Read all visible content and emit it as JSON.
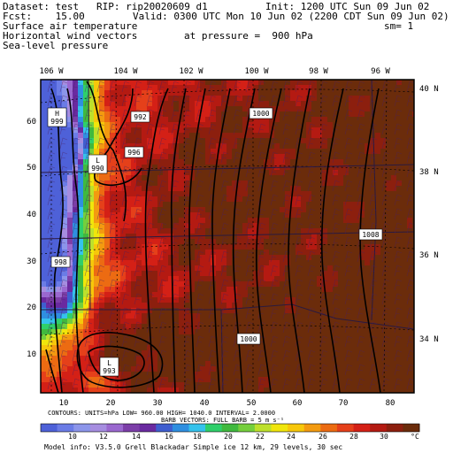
{
  "header": {
    "dataset_line": "Dataset: test   RIP: rip20020609 d1",
    "init_line": "Init: 1200 UTC Sun 09 Jun 02",
    "fcst_line": "Fcst:    15.00",
    "valid_line": "Valid: 0300 UTC Mon 10 Jun 02 (2200 CDT Sun 09 Jun 02)",
    "field1": "Surface air temperature",
    "sm_label": "sm= 1",
    "field2": "Horizontal wind vectors",
    "pressure_label": "at pressure =  900 hPa",
    "field3": "Sea-level pressure"
  },
  "map": {
    "lon_labels": [
      "106 W",
      "104 W",
      "102 W",
      "100 W",
      "98 W",
      "96 W"
    ],
    "lat_labels": [
      "40 N",
      "38 N",
      "36 N",
      "34 N"
    ],
    "x_ticks": [
      "10",
      "20",
      "30",
      "40",
      "50",
      "60",
      "70",
      "80"
    ],
    "y_ticks": [
      "10",
      "20",
      "30",
      "40",
      "50",
      "60"
    ],
    "pressure_labels": [
      {
        "text": "H\n999"
      },
      {
        "text": "L\n990"
      },
      {
        "text": "992"
      },
      {
        "text": "996"
      },
      {
        "text": "1000"
      },
      {
        "text": "1008"
      },
      {
        "text": "998"
      },
      {
        "text": "1000"
      },
      {
        "text": "L\n993"
      }
    ]
  },
  "footer": {
    "contours_line": "CONTOURS:  UNITS=hPa   LOW=  960.00      HIGH=  1040.0      INTERVAL=    2.0000",
    "barbs_line": "BARB VECTORS:  FULL BARB = 5 m s⁻¹",
    "colorbar_ticks": [
      "10",
      "12",
      "14",
      "16",
      "18",
      "20",
      "22",
      "24",
      "26",
      "28",
      "30",
      "°C"
    ],
    "model_info": "Model info: V3.5.0  Grell     Blackadar  Simple ice    12 km,  29 levels,   30 sec"
  },
  "colors": {
    "scale": [
      "#4e61d8",
      "#6b7ce6",
      "#8c95ea",
      "#a68de0",
      "#9a68cf",
      "#7c3ea8",
      "#6a2aa0",
      "#3f5ecf",
      "#2f8fe0",
      "#35c2ec",
      "#2fcf6a",
      "#40b93e",
      "#75cf3c",
      "#bde02c",
      "#f0e60c",
      "#f7c70a",
      "#f39a10",
      "#ec6b12",
      "#e5401a",
      "#d42016",
      "#b41a12",
      "#8c1f0e",
      "#6b2c0b"
    ],
    "contour": "#000000",
    "barb": "#4a2060"
  }
}
